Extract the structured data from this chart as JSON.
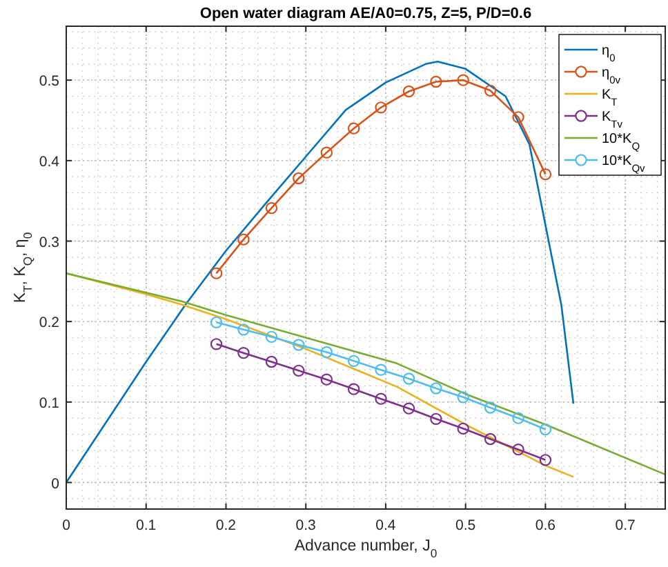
{
  "chart_data": {
    "type": "line",
    "title": "Open water diagram AE/A0=0.75, Z=5, P/D=0.6",
    "xlabel": "Advance number, J$_{0}$",
    "ylabel": "K$_{T}$, K$_{Q}$, η$_{0}$",
    "xlim": [
      0,
      0.75
    ],
    "ylim": [
      -0.033,
      0.567
    ],
    "xticks": [
      0,
      0.1,
      0.2,
      0.3,
      0.4,
      0.5,
      0.6,
      0.7
    ],
    "yticks": [
      0,
      0.1,
      0.2,
      0.3,
      0.4,
      0.5
    ],
    "grid": true,
    "legend": "top right",
    "series": [
      {
        "name": "η$_{0}$",
        "color": "#0072bd",
        "marker": "none",
        "x": [
          0,
          0.05,
          0.1,
          0.15,
          0.2,
          0.25,
          0.3,
          0.35,
          0.4,
          0.45,
          0.465,
          0.5,
          0.55,
          0.58,
          0.6,
          0.62,
          0.635
        ],
        "values": [
          0,
          0.075,
          0.15,
          0.222,
          0.288,
          0.347,
          0.405,
          0.463,
          0.497,
          0.52,
          0.523,
          0.514,
          0.48,
          0.42,
          0.32,
          0.22,
          0.098
        ]
      },
      {
        "name": "η$_{0v}$",
        "color": "#d95319",
        "marker": "circle",
        "x": [
          0.188,
          0.222,
          0.257,
          0.291,
          0.326,
          0.36,
          0.394,
          0.429,
          0.463,
          0.497,
          0.531,
          0.566,
          0.6
        ],
        "values": [
          0.26,
          0.302,
          0.341,
          0.378,
          0.41,
          0.44,
          0.466,
          0.486,
          0.498,
          0.5,
          0.487,
          0.454,
          0.383
        ]
      },
      {
        "name": "K$_{T}$",
        "color": "#edb120",
        "marker": "none",
        "x": [
          0,
          0.1,
          0.145,
          0.2,
          0.3,
          0.414,
          0.5,
          0.6,
          0.635
        ],
        "values": [
          0.26,
          0.234,
          0.221,
          0.203,
          0.166,
          0.119,
          0.072,
          0.021,
          0.007
        ]
      },
      {
        "name": "K$_{Tv}$",
        "color": "#7e2f8e",
        "marker": "circle",
        "x": [
          0.188,
          0.222,
          0.257,
          0.291,
          0.326,
          0.36,
          0.394,
          0.429,
          0.463,
          0.497,
          0.531,
          0.566,
          0.6
        ],
        "values": [
          0.172,
          0.161,
          0.15,
          0.139,
          0.128,
          0.116,
          0.104,
          0.092,
          0.079,
          0.067,
          0.054,
          0.041,
          0.028
        ]
      },
      {
        "name": "10*K$_{Q}$",
        "color": "#77ac30",
        "marker": "none",
        "x": [
          0,
          0.1,
          0.145,
          0.2,
          0.3,
          0.414,
          0.5,
          0.6,
          0.75
        ],
        "values": [
          0.26,
          0.236,
          0.225,
          0.208,
          0.18,
          0.148,
          0.11,
          0.072,
          0.01
        ]
      },
      {
        "name": "10*K$_{Qv}$",
        "color": "#4dbeee",
        "marker": "circle",
        "x": [
          0.188,
          0.222,
          0.257,
          0.291,
          0.326,
          0.36,
          0.394,
          0.429,
          0.463,
          0.497,
          0.531,
          0.566,
          0.6
        ],
        "values": [
          0.199,
          0.19,
          0.181,
          0.171,
          0.162,
          0.151,
          0.14,
          0.129,
          0.117,
          0.106,
          0.093,
          0.08,
          0.066
        ]
      }
    ]
  }
}
